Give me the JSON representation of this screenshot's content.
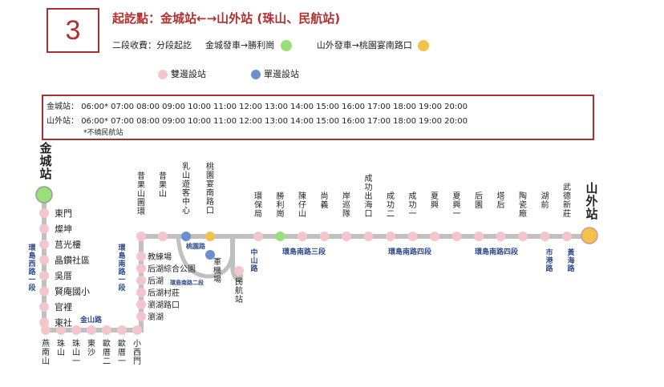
{
  "route": {
    "number": "3",
    "title": "起訖點：金城站←→山外站 (珠山、民航站)",
    "fare": "二段收費：分段起訖",
    "fare_a": "金城發車→勝利崗",
    "fare_b": "山外發車→桃園宴南路口",
    "color_fare_a": "#99e07a",
    "color_fare_b": "#f2c24a"
  },
  "legend": {
    "two_way": "雙邊設站",
    "one_way": "單邊設站",
    "color_two_way": "#f4c6cc",
    "color_one_way": "#6d8fd0"
  },
  "schedule": {
    "rows": [
      {
        "origin": "金城站：",
        "times": [
          "06:00*",
          "07:00",
          "08:00",
          "09:00",
          "10:00",
          "11:00",
          "12:00",
          "13:00",
          "14:00",
          "15:00",
          "16:00",
          "17:00",
          "18:00",
          "19:00",
          "20:00"
        ]
      },
      {
        "origin": "山外站：",
        "times": [
          "06:00*",
          "07:00",
          "08:00",
          "09:00",
          "10:00",
          "11:00",
          "12:00",
          "13:00",
          "14:00",
          "15:00",
          "16:00",
          "17:00",
          "18:00",
          "19:00",
          "20:00"
        ]
      }
    ],
    "note": "*不繞民航站"
  },
  "map": {
    "terminal_start": "金城站",
    "terminal_end": "山外站",
    "left_stops": [
      "東門",
      "燦坤",
      "莒光樓",
      "晶鑽社區",
      "吳厝",
      "賢庵國小",
      "官裡",
      "東社"
    ],
    "bottom_stops": [
      "燕南山",
      "珠山",
      "珠山一",
      "東沙",
      "歐厝二",
      "歐厝一",
      "小西門"
    ],
    "branch_stops": [
      "教練場",
      "后湖綜合公園",
      "后湖",
      "后湖村莊",
      "瀏湖路口",
      "瀏湖"
    ],
    "top_left_stops": [
      "昔果山圖環",
      "昔果山",
      "乳山遊客中心",
      "桃園宴南路口"
    ],
    "top_stops": [
      "環保局",
      "勝利崗",
      "陳仔山",
      "尚義",
      "岸巡隊",
      "成功出海口",
      "成功二",
      "成功一",
      "夏興",
      "夏興一",
      "后園",
      "塔后",
      "陶瓷廠",
      "湖前",
      "武德新莊"
    ],
    "airport_stops": [
      "軍機場",
      "民航站"
    ],
    "road_labels": [
      "環島西路一段",
      "金山路",
      "環島南路一段",
      "桃園路",
      "環島南路二段",
      "中山路",
      "環島南路三段",
      "環島南路四段",
      "環島南路四段",
      "市港路",
      "黃海路"
    ]
  }
}
